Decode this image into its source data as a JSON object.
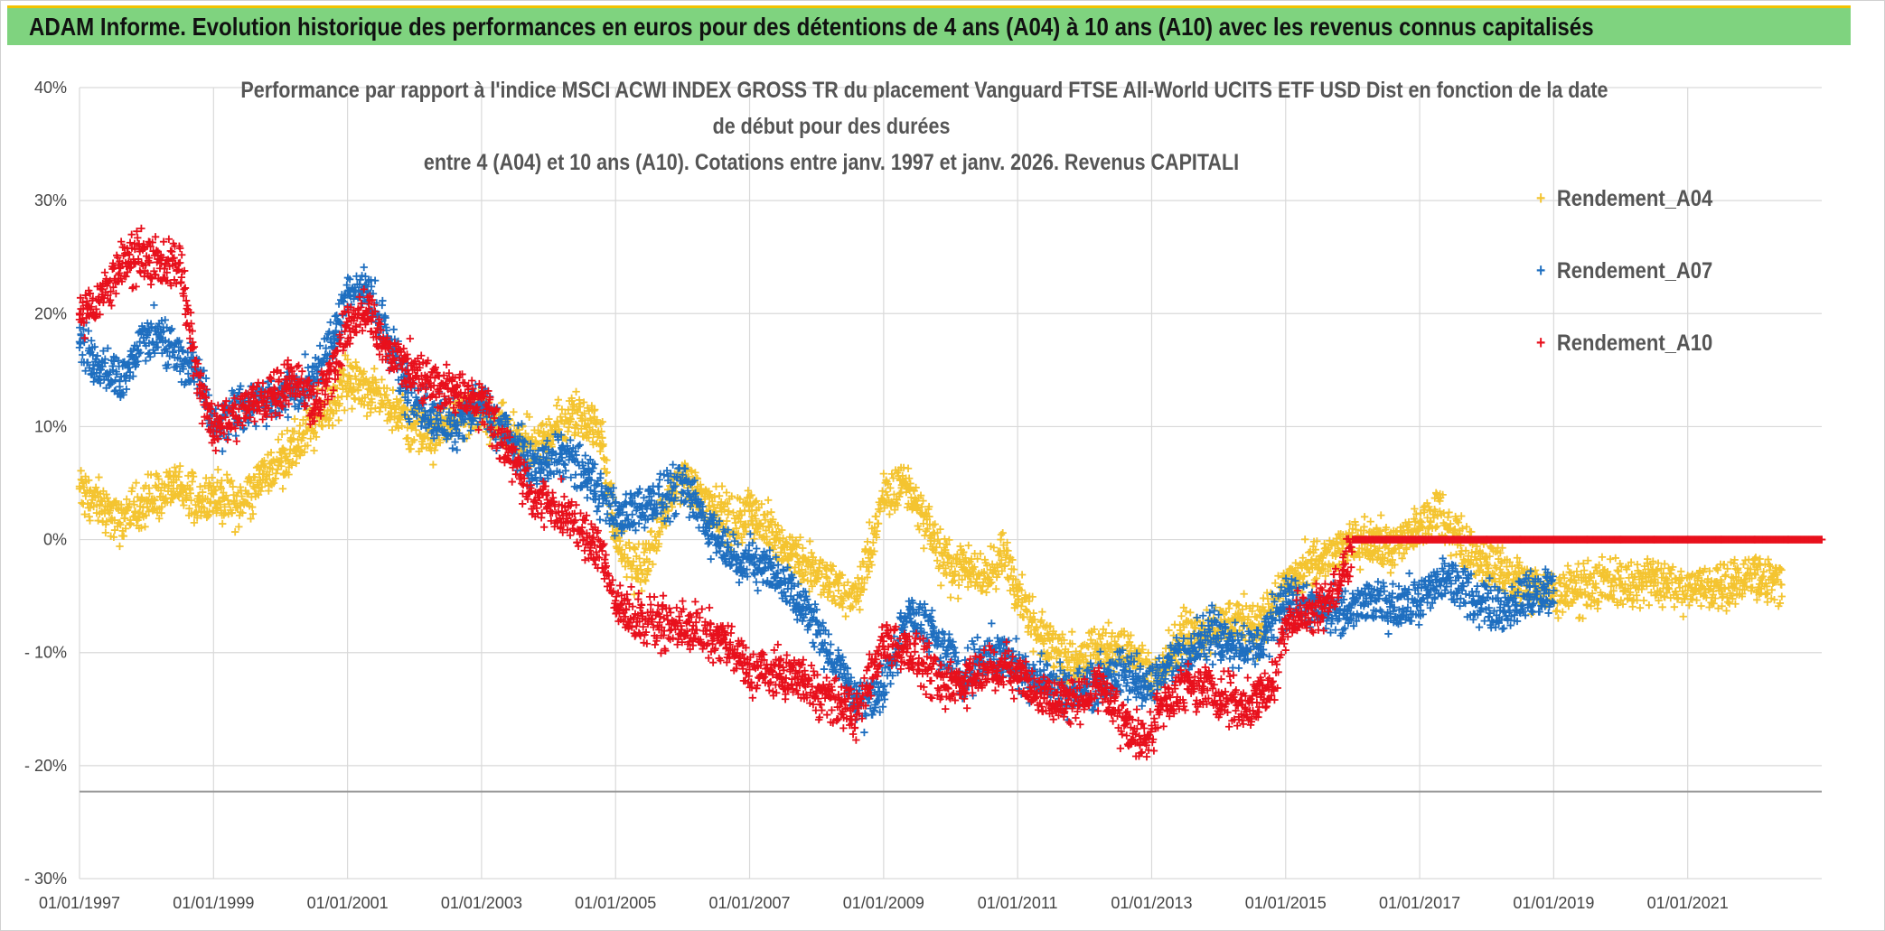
{
  "header": {
    "title": "ADAM Informe. Evolution historique des performances en euros pour des détentions de 4 ans (A04) à 10 ans (A10) avec les revenus connus capitalisés"
  },
  "colors": {
    "banner": "#7fd37f",
    "banner_border": "#f2c200",
    "A04": "#f4c430",
    "A07": "#1f6fc0",
    "A10": "#e8101c",
    "grid": "#d9d9d9"
  },
  "chart_data": {
    "type": "scatter",
    "title_lines": [
      "Performance par rapport à l'indice MSCI ACWI INDEX GROSS TR  du placement Vanguard FTSE All-World UCITS ETF USD Dist en fonction de la date",
      "de début pour des durées",
      "entre 4 (A04) et 10 ans (A10). Cotations entre janv. 1997 et janv. 2026. Revenus CAPITALI"
    ],
    "xlabel": "",
    "ylabel": "",
    "x_range": [
      1997.0,
      2023.0
    ],
    "ylim": [
      -30,
      40
    ],
    "y_ticks": [
      40,
      30,
      20,
      10,
      0,
      -10,
      -20,
      -30
    ],
    "y_tick_labels": [
      "40%",
      "30%",
      "20%",
      "10%",
      "0%",
      "- 10%",
      "- 20%",
      "- 30%"
    ],
    "x_ticks": [
      1997,
      1999,
      2001,
      2003,
      2005,
      2007,
      2009,
      2011,
      2013,
      2015,
      2017,
      2019,
      2021
    ],
    "x_tick_labels": [
      "01/01/1997",
      "01/01/1999",
      "01/01/2001",
      "01/01/2003",
      "01/01/2005",
      "01/01/2007",
      "01/01/2009",
      "01/01/2011",
      "01/01/2013",
      "01/01/2015",
      "01/01/2017",
      "01/01/2019",
      "01/01/2021"
    ],
    "reference_line_y": -22.3,
    "legend_position": "top-right",
    "marker": "+",
    "series": [
      {
        "name": "Rendement_A04",
        "color": "#f4c430",
        "x": [
          1997.0,
          1997.3,
          1997.6,
          1998.0,
          1998.4,
          1998.8,
          1999.0,
          1999.4,
          1999.8,
          2000.2,
          2000.6,
          2001.0,
          2001.4,
          2001.8,
          2002.2,
          2002.6,
          2003.0,
          2003.4,
          2003.8,
          2004.2,
          2004.5,
          2004.8,
          2005.0,
          2005.4,
          2005.8,
          2006.0,
          2006.4,
          2006.8,
          2007.0,
          2007.4,
          2007.8,
          2008.2,
          2008.6,
          2009.0,
          2009.3,
          2009.6,
          2009.9,
          2010.2,
          2010.5,
          2010.8,
          2011.0,
          2011.3,
          2011.6,
          2011.9,
          2012.2,
          2012.5,
          2012.8,
          2013.0,
          2013.4,
          2013.8,
          2014.2,
          2014.6,
          2015.0,
          2015.4,
          2015.8,
          2016.2,
          2016.6,
          2017.0,
          2017.3,
          2017.6,
          2018.0,
          2018.4,
          2018.8,
          2019.0,
          2019.5,
          2020.0,
          2020.5,
          2021.0,
          2021.5,
          2022.0,
          2022.4
        ],
        "values": [
          4.5,
          3.0,
          1.5,
          3.5,
          4.5,
          3.5,
          4.0,
          3.0,
          6.0,
          8.0,
          11.0,
          14.0,
          13.0,
          11.0,
          9.0,
          11.0,
          11.0,
          9.5,
          8.0,
          10.5,
          11.0,
          9.0,
          0.0,
          -3.0,
          3.5,
          5.5,
          3.0,
          1.0,
          2.5,
          0.0,
          -2.0,
          -4.0,
          -5.0,
          3.5,
          5.0,
          2.0,
          -2.0,
          -2.5,
          -3.0,
          -1.0,
          -5.0,
          -8.5,
          -10.0,
          -11.0,
          -10.0,
          -9.5,
          -10.5,
          -12.0,
          -9.0,
          -8.0,
          -7.0,
          -7.5,
          -4.0,
          -2.5,
          -1.0,
          0.0,
          -1.0,
          1.0,
          2.5,
          0.0,
          -2.0,
          -3.5,
          -4.5,
          -5.0,
          -4.0,
          -4.0,
          -3.5,
          -4.5,
          -4.0,
          -3.0,
          -4.0
        ]
      },
      {
        "name": "Rendement_A07",
        "color": "#1f6fc0",
        "x": [
          1997.0,
          1997.3,
          1997.6,
          1997.9,
          1998.2,
          1998.5,
          1998.8,
          1999.0,
          1999.4,
          1999.8,
          2000.2,
          2000.5,
          2000.8,
          2001.0,
          2001.3,
          2001.6,
          2001.9,
          2002.2,
          2002.6,
          2003.0,
          2003.4,
          2003.8,
          2004.2,
          2004.6,
          2005.0,
          2005.4,
          2005.8,
          2006.0,
          2006.4,
          2006.8,
          2007.0,
          2007.4,
          2007.8,
          2008.2,
          2008.6,
          2009.0,
          2009.4,
          2009.8,
          2010.2,
          2010.6,
          2011.0,
          2011.4,
          2011.8,
          2012.2,
          2012.6,
          2013.0,
          2013.4,
          2013.8,
          2014.2,
          2014.6,
          2015.0,
          2015.4,
          2015.8,
          2016.2,
          2016.6,
          2017.0,
          2017.4,
          2017.8,
          2018.2,
          2018.6,
          2019.0
        ],
        "values": [
          17.5,
          15.0,
          14.0,
          17.5,
          18.0,
          16.0,
          14.5,
          10.0,
          12.0,
          12.5,
          13.0,
          14.0,
          18.0,
          22.0,
          22.0,
          18.0,
          13.0,
          11.0,
          10.0,
          12.0,
          9.0,
          6.0,
          8.0,
          5.5,
          2.0,
          3.0,
          4.0,
          5.0,
          1.0,
          -1.5,
          -2.0,
          -3.0,
          -6.0,
          -10.0,
          -14.5,
          -13.0,
          -6.0,
          -9.0,
          -12.0,
          -10.0,
          -11.0,
          -12.5,
          -13.5,
          -12.5,
          -12.0,
          -13.0,
          -10.0,
          -8.5,
          -9.0,
          -9.5,
          -5.0,
          -6.0,
          -7.0,
          -5.5,
          -6.0,
          -5.5,
          -3.5,
          -5.0,
          -6.0,
          -5.0,
          -4.5
        ]
      },
      {
        "name": "Rendement_A10",
        "color": "#e8101c",
        "x": [
          1997.0,
          1997.3,
          1997.6,
          1997.9,
          1998.2,
          1998.5,
          1998.8,
          1999.0,
          1999.3,
          1999.6,
          1999.9,
          2000.2,
          2000.5,
          2000.8,
          2001.0,
          2001.3,
          2001.6,
          2001.9,
          2002.2,
          2002.6,
          2003.0,
          2003.4,
          2003.8,
          2004.2,
          2004.5,
          2004.8,
          2005.0,
          2005.4,
          2005.8,
          2006.2,
          2006.6,
          2007.0,
          2007.4,
          2007.8,
          2008.2,
          2008.6,
          2009.0,
          2009.3,
          2009.6,
          2009.9,
          2010.2,
          2010.6,
          2011.0,
          2011.4,
          2011.8,
          2012.2,
          2012.6,
          2012.9,
          2013.2,
          2013.6,
          2014.0,
          2014.4,
          2014.8,
          2015.0,
          2015.4,
          2015.8,
          2016.0,
          2016.5,
          2017.0,
          2017.5,
          2018.0,
          2018.5,
          2019.0,
          2019.5,
          2020.0,
          2020.5,
          2021.0,
          2021.5,
          2022.0,
          2022.5,
          2023.0
        ],
        "values": [
          20.0,
          21.0,
          24.0,
          25.5,
          24.0,
          24.5,
          13.0,
          10.0,
          11.0,
          12.0,
          13.0,
          14.5,
          12.0,
          15.0,
          19.0,
          20.0,
          17.0,
          15.0,
          14.0,
          13.0,
          12.5,
          8.0,
          3.5,
          2.5,
          0.5,
          -1.0,
          -6.0,
          -7.0,
          -7.5,
          -8.0,
          -9.0,
          -11.5,
          -12.0,
          -12.5,
          -14.0,
          -15.5,
          -9.0,
          -9.5,
          -11.0,
          -13.0,
          -12.5,
          -11.0,
          -12.0,
          -14.0,
          -14.5,
          -13.0,
          -16.0,
          -18.0,
          -14.0,
          -13.0,
          -13.5,
          -15.0,
          -13.0,
          -7.0,
          -6.5,
          -4.0,
          0.0,
          0.0,
          0.0,
          0.0,
          0.0,
          0.0,
          0.0,
          0.0,
          0.0,
          0.0,
          0.0,
          0.0,
          0.0,
          0.0,
          0.0
        ]
      }
    ]
  }
}
